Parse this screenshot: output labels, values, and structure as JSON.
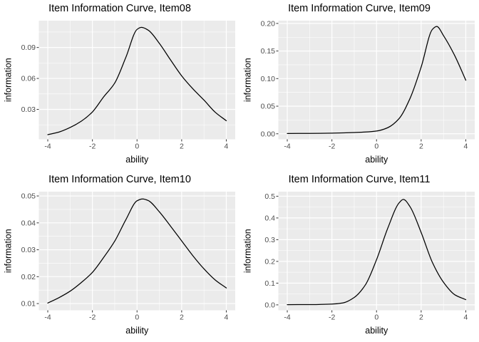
{
  "page": {
    "background": "#ffffff"
  },
  "theme": {
    "panel_bg": "#EBEBEB",
    "grid_major_color": "#FFFFFF",
    "grid_minor_color": "#FFFFFF",
    "curve_color": "#000000",
    "tick_mark_color": "#333333",
    "tick_label_color": "#4D4D4D",
    "title_color": "#000000"
  },
  "chart_data": [
    {
      "type": "line",
      "title": "Item Information Curve, Item08",
      "xlabel": "ability",
      "ylabel": "information",
      "legend": "none",
      "grid": true,
      "xlim": [
        -4.4,
        4.4
      ],
      "ylim": [
        0.001,
        0.116
      ],
      "x": [
        -4,
        -3.5,
        -3,
        -2.5,
        -2,
        -1.5,
        -1,
        -0.5,
        0,
        0.2,
        0.5,
        1,
        1.5,
        2,
        2.5,
        3,
        3.5,
        4
      ],
      "y": [
        0.0055,
        0.008,
        0.0124,
        0.0185,
        0.0275,
        0.042,
        0.0555,
        0.0805,
        0.1075,
        0.1095,
        0.1068,
        0.094,
        0.078,
        0.0625,
        0.05,
        0.039,
        0.0273,
        0.019
      ],
      "x_ticks": {
        "major": [
          -4,
          -2,
          0,
          2,
          4
        ],
        "labels": [
          "-4",
          "-2",
          "0",
          "2",
          "4"
        ],
        "minor": [
          -3,
          -1,
          1,
          3
        ]
      },
      "y_ticks": {
        "major": [
          0.03,
          0.06,
          0.09
        ],
        "labels": [
          "0.03",
          "0.06",
          "0.09"
        ],
        "minor": [
          0.015,
          0.045,
          0.075,
          0.105
        ]
      }
    },
    {
      "type": "line",
      "title": "Item Information Curve, Item09",
      "xlabel": "ability",
      "ylabel": "information",
      "legend": "none",
      "grid": true,
      "xlim": [
        -4.4,
        4.4
      ],
      "ylim": [
        -0.01,
        0.205
      ],
      "x": [
        -4,
        -3,
        -2,
        -1.5,
        -1,
        -0.5,
        0,
        0.5,
        1,
        1.5,
        2,
        2.5,
        2.7,
        3,
        3.5,
        4
      ],
      "y": [
        0.0005,
        0.0007,
        0.0012,
        0.0016,
        0.0022,
        0.0032,
        0.005,
        0.011,
        0.027,
        0.064,
        0.121,
        0.189,
        0.1945,
        0.178,
        0.142,
        0.097
      ],
      "x_ticks": {
        "major": [
          -4,
          -2,
          0,
          2,
          4
        ],
        "labels": [
          "-4",
          "-2",
          "0",
          "2",
          "4"
        ],
        "minor": [
          -3,
          -1,
          1,
          3
        ]
      },
      "y_ticks": {
        "major": [
          0,
          0.05,
          0.1,
          0.15,
          0.2
        ],
        "labels": [
          "0.00",
          "0.05",
          "0.10",
          "0.15",
          "0.20"
        ],
        "minor": [
          0.025,
          0.075,
          0.125,
          0.175
        ]
      }
    },
    {
      "type": "line",
      "title": "Item Information Curve, Item10",
      "xlabel": "ability",
      "ylabel": "information",
      "legend": "none",
      "grid": true,
      "xlim": [
        -4.4,
        4.4
      ],
      "ylim": [
        0.0075,
        0.0516
      ],
      "x": [
        -4,
        -3.5,
        -3,
        -2.5,
        -2,
        -1.5,
        -1,
        -0.5,
        0,
        0.25,
        0.5,
        1,
        1.5,
        2,
        2.5,
        3,
        3.5,
        4
      ],
      "y": [
        0.0102,
        0.0122,
        0.0146,
        0.0178,
        0.0216,
        0.0271,
        0.0332,
        0.0412,
        0.0482,
        0.0489,
        0.0483,
        0.0441,
        0.0388,
        0.0333,
        0.0278,
        0.0229,
        0.0188,
        0.0158
      ],
      "x_ticks": {
        "major": [
          -4,
          -2,
          0,
          2,
          4
        ],
        "labels": [
          "-4",
          "-2",
          "0",
          "2",
          "4"
        ],
        "minor": [
          -3,
          -1,
          1,
          3
        ]
      },
      "y_ticks": {
        "major": [
          0.01,
          0.02,
          0.03,
          0.04,
          0.05
        ],
        "labels": [
          "0.01",
          "0.02",
          "0.03",
          "0.04",
          "0.05"
        ],
        "minor": [
          0.015,
          0.025,
          0.035,
          0.045
        ]
      }
    },
    {
      "type": "line",
      "title": "Item Information Curve, Item11",
      "xlabel": "ability",
      "ylabel": "information",
      "legend": "none",
      "grid": true,
      "xlim": [
        -4.4,
        4.4
      ],
      "ylim": [
        -0.025,
        0.521
      ],
      "x": [
        -4,
        -3,
        -2.5,
        -2,
        -1.5,
        -1,
        -0.5,
        0,
        0.5,
        1,
        1.2,
        1.5,
        2,
        2.5,
        3,
        3.5,
        4
      ],
      "y": [
        0.001,
        0.0012,
        0.002,
        0.0035,
        0.009,
        0.034,
        0.092,
        0.208,
        0.352,
        0.468,
        0.4855,
        0.452,
        0.333,
        0.196,
        0.104,
        0.047,
        0.024
      ],
      "x_ticks": {
        "major": [
          -4,
          -2,
          0,
          2,
          4
        ],
        "labels": [
          "-4",
          "-2",
          "0",
          "2",
          "4"
        ],
        "minor": [
          -3,
          -1,
          1,
          3
        ]
      },
      "y_ticks": {
        "major": [
          0,
          0.1,
          0.2,
          0.3,
          0.4,
          0.5
        ],
        "labels": [
          "0.0",
          "0.1",
          "0.2",
          "0.3",
          "0.4",
          "0.5"
        ],
        "minor": [
          0.05,
          0.15,
          0.25,
          0.35,
          0.45
        ]
      }
    }
  ]
}
